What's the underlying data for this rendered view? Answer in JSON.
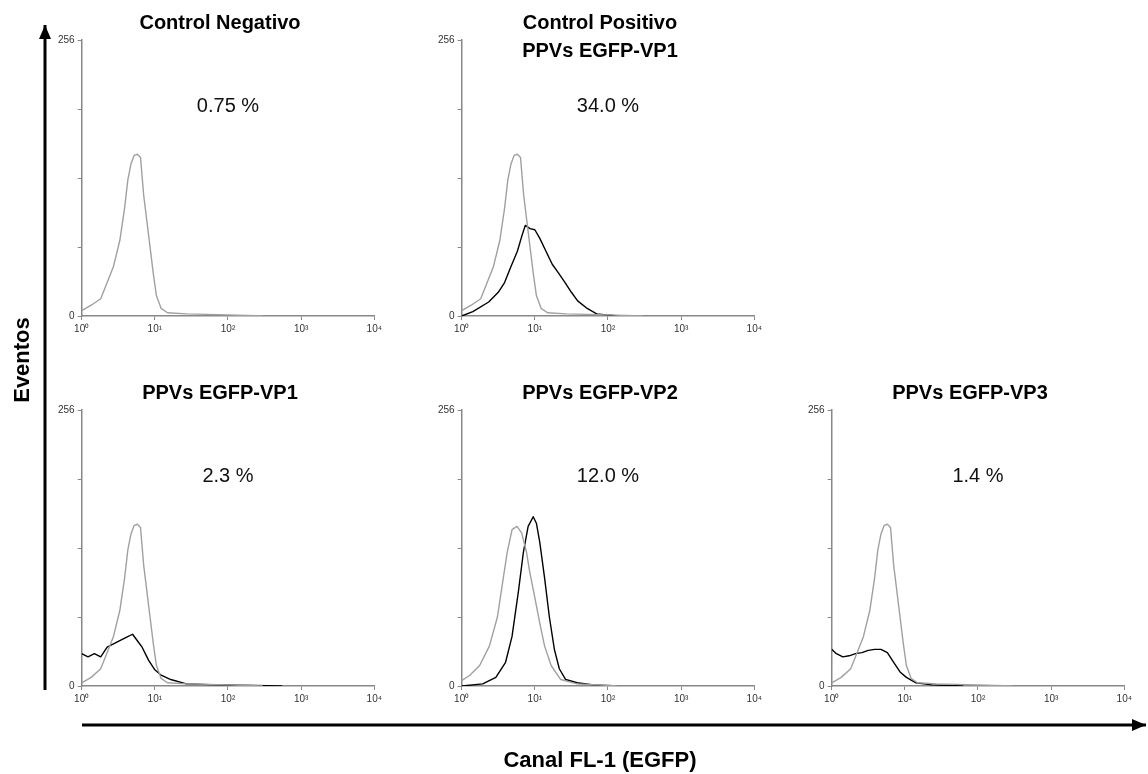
{
  "chart_data": [
    {
      "type": "line",
      "title": "Control Negativo",
      "ylabel": "Eventos",
      "annotations": [
        "0.75 %"
      ],
      "log": "x",
      "xlim": [
        1,
        10000
      ],
      "ylim": [
        0,
        256
      ],
      "xticks": [
        {
          "value": 1,
          "label": "10⁰"
        },
        {
          "value": 10,
          "label": "10¹"
        },
        {
          "value": 100,
          "label": "10²"
        },
        {
          "value": 1000,
          "label": "10³"
        },
        {
          "value": 10000,
          "label": "10⁴"
        }
      ],
      "yticks": [
        {
          "value": 0,
          "label": "0"
        },
        {
          "value": 64,
          "label": null
        },
        {
          "value": 128,
          "label": null
        },
        {
          "value": 192,
          "label": null
        },
        {
          "value": 256,
          "label": "256"
        }
      ],
      "series": [
        {
          "color": "#a0a0a0",
          "x": [
            1,
            1.35,
            1.82,
            2.23,
            2.72,
            3.32,
            3.86,
            4.27,
            4.72,
            5.22,
            5.77,
            6.37,
            7.04,
            7.78,
            8.6,
            9.5,
            10.5,
            12.2,
            14.9,
            27,
            100,
            300
          ],
          "values": [
            5,
            10,
            16,
            31,
            46,
            70,
            100,
            126,
            141,
            149,
            150,
            147,
            112,
            88,
            64,
            40,
            19,
            7,
            3,
            2,
            1,
            0
          ]
        }
      ]
    },
    {
      "type": "line",
      "title": "Control Positivo\nPPVs EGFP-VP1",
      "annotations": [
        "34.0 %"
      ],
      "log": "x",
      "xlim": [
        1,
        10000
      ],
      "ylim": [
        0,
        256
      ],
      "xticks": [
        {
          "value": 1,
          "label": "10⁰"
        },
        {
          "value": 10,
          "label": "10¹"
        },
        {
          "value": 100,
          "label": "10²"
        },
        {
          "value": 1000,
          "label": "10³"
        },
        {
          "value": 10000,
          "label": "10⁴"
        }
      ],
      "yticks": [
        {
          "value": 0,
          "label": "0"
        },
        {
          "value": 64,
          "label": null
        },
        {
          "value": 128,
          "label": null
        },
        {
          "value": 192,
          "label": null
        },
        {
          "value": 256,
          "label": "256"
        }
      ],
      "series": [
        {
          "color": "#a0a0a0",
          "x": [
            1,
            1.35,
            1.82,
            2.23,
            2.72,
            3.32,
            3.86,
            4.27,
            4.72,
            5.22,
            5.77,
            6.37,
            7.04,
            7.78,
            8.6,
            9.5,
            10.5,
            12.2,
            14.9,
            27,
            100,
            300
          ],
          "values": [
            5,
            10,
            16,
            31,
            46,
            70,
            100,
            126,
            141,
            149,
            150,
            147,
            112,
            88,
            64,
            40,
            19,
            7,
            3,
            2,
            1,
            0
          ]
        },
        {
          "color": "#000000",
          "x": [
            1,
            1.42,
            2.34,
            3.16,
            3.86,
            4.72,
            5.77,
            6.7,
            7.4,
            8.6,
            10,
            11.7,
            14.2,
            17.3,
            21,
            25.9,
            31.6,
            38.5,
            52,
            70,
            95,
            141
          ],
          "values": [
            0,
            4,
            13,
            22,
            31,
            46,
            60,
            75,
            84,
            81,
            80,
            72,
            60,
            48,
            40,
            31,
            22,
            14,
            7,
            2,
            1,
            0
          ]
        }
      ]
    },
    {
      "type": "line",
      "title": "PPVs EGFP-VP1",
      "annotations": [
        "2.3 %"
      ],
      "log": "x",
      "xlim": [
        1,
        10000
      ],
      "ylim": [
        0,
        256
      ],
      "xticks": [
        {
          "value": 1,
          "label": "10⁰"
        },
        {
          "value": 10,
          "label": "10¹"
        },
        {
          "value": 100,
          "label": "10²"
        },
        {
          "value": 1000,
          "label": "10³"
        },
        {
          "value": 10000,
          "label": "10⁴"
        }
      ],
      "yticks": [
        {
          "value": 0,
          "label": "0"
        },
        {
          "value": 64,
          "label": null
        },
        {
          "value": 128,
          "label": null
        },
        {
          "value": 192,
          "label": null
        },
        {
          "value": 256,
          "label": "256"
        }
      ],
      "series": [
        {
          "color": "#a0a0a0",
          "x": [
            1,
            1.35,
            1.82,
            2.23,
            2.72,
            3.32,
            3.86,
            4.27,
            4.72,
            5.22,
            5.77,
            6.37,
            7.04,
            7.78,
            8.6,
            9.5,
            10.5,
            12.2,
            14.9,
            27,
            100,
            300
          ],
          "values": [
            3,
            8,
            16,
            31,
            46,
            70,
            100,
            126,
            141,
            149,
            150,
            147,
            112,
            88,
            64,
            40,
            19,
            7,
            3,
            2,
            1,
            0
          ]
        },
        {
          "color": "#000000",
          "x": [
            1,
            1.22,
            1.49,
            1.82,
            2.23,
            2.72,
            3.32,
            4.06,
            4.96,
            5.77,
            6.7,
            8.2,
            10,
            12.2,
            16.5,
            27,
            74,
            550
          ],
          "values": [
            30,
            27,
            30,
            27,
            36,
            39,
            42,
            45,
            48,
            42,
            36,
            24,
            15,
            10,
            6,
            2,
            1,
            0
          ]
        }
      ]
    },
    {
      "type": "line",
      "title": "PPVs EGFP-VP2",
      "xlabel": "Canal FL-1 (EGFP)",
      "annotations": [
        "12.0 %"
      ],
      "log": "x",
      "xlim": [
        1,
        10000
      ],
      "ylim": [
        0,
        256
      ],
      "xticks": [
        {
          "value": 1,
          "label": "10⁰"
        },
        {
          "value": 10,
          "label": "10¹"
        },
        {
          "value": 100,
          "label": "10²"
        },
        {
          "value": 1000,
          "label": "10³"
        },
        {
          "value": 10000,
          "label": "10⁴"
        }
      ],
      "yticks": [
        {
          "value": 0,
          "label": "0"
        },
        {
          "value": 64,
          "label": null
        },
        {
          "value": 128,
          "label": null
        },
        {
          "value": 192,
          "label": null
        },
        {
          "value": 256,
          "label": "256"
        }
      ],
      "series": [
        {
          "color": "#a0a0a0",
          "x": [
            1,
            1.29,
            1.76,
            2.39,
            3.08,
            3.59,
            4.19,
            4.88,
            5.7,
            6.6,
            7.7,
            8.5,
            10,
            11.7,
            13.6,
            16.7,
            22.6,
            37.8,
            142
          ],
          "values": [
            5,
            10,
            19,
            37,
            64,
            94,
            124,
            145,
            148,
            142,
            124,
            106,
            82,
            58,
            37,
            19,
            6,
            2,
            0
          ]
        },
        {
          "color": "#000000",
          "x": [
            1,
            1.94,
            2.93,
            3.98,
            4.88,
            5.97,
            6.97,
            8.1,
            9.5,
            10.5,
            11.7,
            13.6,
            15.8,
            18.5,
            21.6,
            26.4,
            37.8,
            63,
            142
          ],
          "values": [
            0,
            2,
            8,
            22,
            46,
            88,
            124,
            148,
            157,
            151,
            133,
            100,
            64,
            34,
            16,
            6,
            3,
            1,
            0
          ]
        }
      ]
    },
    {
      "type": "line",
      "title": "PPVs EGFP-VP3",
      "annotations": [
        "1.4 %"
      ],
      "log": "x",
      "xlim": [
        1,
        10000
      ],
      "ylim": [
        0,
        256
      ],
      "xticks": [
        {
          "value": 1,
          "label": "10⁰"
        },
        {
          "value": 10,
          "label": "10¹"
        },
        {
          "value": 100,
          "label": "10²"
        },
        {
          "value": 1000,
          "label": "10³"
        },
        {
          "value": 10000,
          "label": "10⁴"
        }
      ],
      "yticks": [
        {
          "value": 0,
          "label": "0"
        },
        {
          "value": 64,
          "label": null
        },
        {
          "value": 128,
          "label": null
        },
        {
          "value": 192,
          "label": null
        },
        {
          "value": 256,
          "label": "256"
        }
      ],
      "series": [
        {
          "color": "#a0a0a0",
          "x": [
            1,
            1.35,
            1.82,
            2.23,
            2.72,
            3.32,
            3.86,
            4.27,
            4.72,
            5.22,
            5.77,
            6.37,
            7.04,
            7.78,
            8.6,
            9.5,
            10.5,
            12.2,
            14.9,
            27,
            100,
            300
          ],
          "values": [
            3,
            8,
            16,
            31,
            46,
            70,
            100,
            126,
            141,
            149,
            150,
            147,
            112,
            88,
            64,
            40,
            19,
            7,
            3,
            2,
            1,
            0
          ]
        },
        {
          "color": "#000000",
          "x": [
            1,
            1.16,
            1.42,
            1.73,
            2.12,
            2.59,
            3.16,
            3.86,
            4.72,
            5.77,
            7.04,
            8.6,
            10.5,
            14.2,
            23.4,
            63
          ],
          "values": [
            34,
            30,
            27,
            28,
            30,
            31,
            33,
            34,
            34,
            31,
            22,
            13,
            8,
            3,
            1,
            0
          ]
        }
      ]
    }
  ]
}
